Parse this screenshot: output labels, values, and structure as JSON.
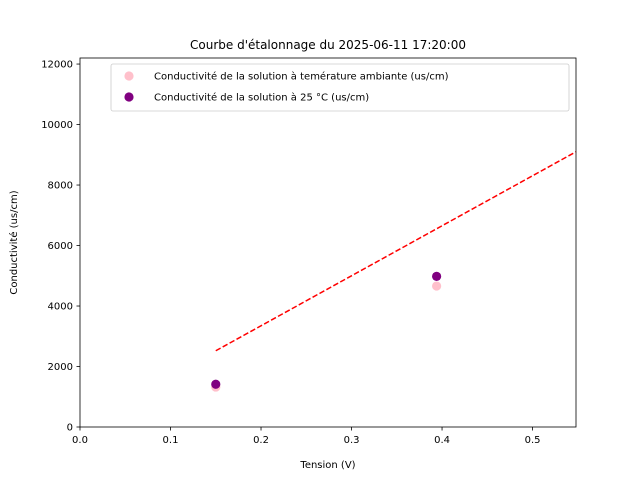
{
  "chart_data": {
    "type": "scatter",
    "title": "Courbe d'étalonnage du 2025-06-11 17:20:00",
    "xlabel": "Tension (V)",
    "ylabel": "Conductivité (us/cm)",
    "xlim": [
      0.0,
      0.548
    ],
    "ylim": [
      0,
      12200
    ],
    "xticks": [
      0.0,
      0.1,
      0.2,
      0.3,
      0.4,
      0.5
    ],
    "xtick_labels": [
      "0.0",
      "0.1",
      "0.2",
      "0.3",
      "0.4",
      "0.5"
    ],
    "yticks": [
      0,
      2000,
      4000,
      6000,
      8000,
      10000,
      12000
    ],
    "ytick_labels": [
      "0",
      "2000",
      "4000",
      "6000",
      "8000",
      "10000",
      "12000"
    ],
    "grid": false,
    "legend_position": "top-right",
    "series": [
      {
        "name": "Conductivité de la solution à teméra­ture ambiante (us/cm)",
        "kind": "scatter",
        "color": "#ffc0cb",
        "x": [
          0.15,
          0.394
        ],
        "y": [
          1320,
          4660
        ]
      },
      {
        "name": "Conductivité de la solution à 25 °C (us/cm)",
        "kind": "scatter",
        "color": "#800080",
        "x": [
          0.15,
          0.394
        ],
        "y": [
          1413,
          4980
        ]
      },
      {
        "kind": "line",
        "style": "dashed",
        "color": "#ff0000",
        "x": [
          0.15,
          0.548
        ],
        "y": [
          2520,
          9100
        ]
      }
    ]
  }
}
